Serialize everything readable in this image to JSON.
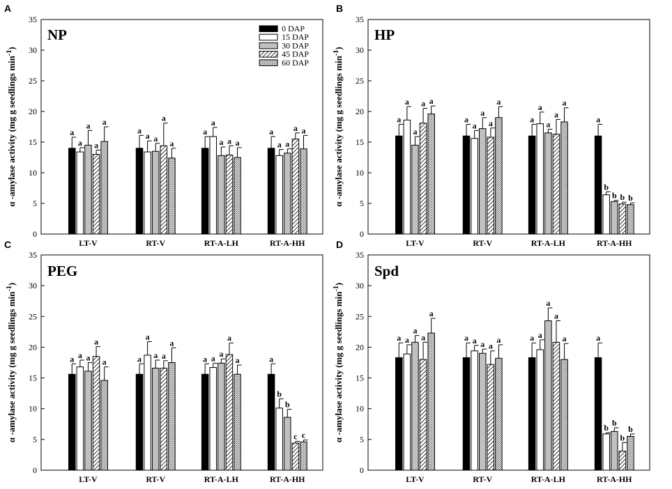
{
  "chart_data": [
    {
      "type": "bar",
      "panel_letter": "A",
      "title": "NP",
      "ylabel": "α -amylase activity (mg g seedlings min",
      "ylabel_sup": "-1",
      "ylabel_close": ")",
      "ylim": [
        0,
        35
      ],
      "yticks": [
        "0",
        "5",
        "10",
        "15",
        "20",
        "25",
        "30",
        "35"
      ],
      "categories": [
        "LT-V",
        "RT-V",
        "RT-A-LH",
        "RT-A-HH"
      ],
      "legend": [
        "0 DAP",
        "15 DAP",
        "30 DAP",
        "45 DAP",
        "60 DAP"
      ],
      "series": [
        {
          "name": "0 DAP",
          "values": [
            14.0,
            14.0,
            14.0,
            14.0
          ],
          "errors": [
            1.8,
            2.1,
            1.9,
            1.9
          ],
          "labels": [
            "a",
            "a",
            "a",
            "a"
          ]
        },
        {
          "name": "15 DAP",
          "values": [
            13.4,
            13.4,
            15.9,
            12.8
          ],
          "errors": [
            0.7,
            1.8,
            1.5,
            1.0
          ],
          "labels": [
            "a",
            "a",
            "a",
            "a"
          ]
        },
        {
          "name": "30 DAP",
          "values": [
            14.5,
            13.5,
            12.8,
            13.2
          ],
          "errors": [
            2.4,
            1.3,
            1.4,
            0.7
          ],
          "labels": [
            "a",
            "a",
            "a",
            "a"
          ]
        },
        {
          "name": "45 DAP",
          "values": [
            13.0,
            14.4,
            12.9,
            15.5
          ],
          "errors": [
            0.7,
            3.7,
            1.5,
            1.0
          ],
          "labels": [
            "a",
            "a",
            "a",
            "a"
          ]
        },
        {
          "name": "60 DAP",
          "values": [
            15.1,
            12.4,
            12.5,
            13.9
          ],
          "errors": [
            2.4,
            1.6,
            1.6,
            2.2
          ],
          "labels": [
            "a",
            "a",
            "a",
            "a"
          ]
        }
      ]
    },
    {
      "type": "bar",
      "panel_letter": "B",
      "title": "HP",
      "ylabel": "α -amylase activity (mg g seedlings min",
      "ylabel_sup": "-1",
      "ylabel_close": ")",
      "ylim": [
        0,
        35
      ],
      "yticks": [
        "0",
        "5",
        "10",
        "15",
        "20",
        "25",
        "30",
        "35"
      ],
      "categories": [
        "LT-V",
        "RT-V",
        "RT-A-LH",
        "RT-A-HH"
      ],
      "series": [
        {
          "name": "0 DAP",
          "values": [
            16.0,
            16.0,
            16.0,
            16.0
          ],
          "errors": [
            1.9,
            1.9,
            1.9,
            1.9
          ],
          "labels": [
            "a",
            "a",
            "a",
            "a"
          ]
        },
        {
          "name": "15 DAP",
          "values": [
            18.6,
            15.6,
            18.0,
            6.4
          ],
          "errors": [
            2.2,
            1.3,
            1.9,
            0.5
          ],
          "labels": [
            "a",
            "a",
            "a",
            "b"
          ]
        },
        {
          "name": "30 DAP",
          "values": [
            14.5,
            17.2,
            16.5,
            5.3
          ],
          "errors": [
            1.4,
            1.8,
            0.6,
            0.2
          ],
          "labels": [
            "a",
            "a",
            "a",
            "b"
          ]
        },
        {
          "name": "45 DAP",
          "values": [
            18.1,
            15.8,
            16.3,
            4.9
          ],
          "errors": [
            2.4,
            1.5,
            2.4,
            0.3
          ],
          "labels": [
            "a",
            "a",
            "a",
            "b"
          ]
        },
        {
          "name": "60 DAP",
          "values": [
            19.6,
            19.0,
            18.3,
            4.8
          ],
          "errors": [
            1.3,
            1.8,
            2.3,
            0.3
          ],
          "labels": [
            "a",
            "a",
            "a",
            "b"
          ]
        }
      ]
    },
    {
      "type": "bar",
      "panel_letter": "C",
      "title": "PEG",
      "ylabel": "α -amylase activity (mg g seedlings min",
      "ylabel_sup": "-1",
      "ylabel_close": ")",
      "ylim": [
        0,
        35
      ],
      "yticks": [
        "0",
        "5",
        "10",
        "15",
        "20",
        "25",
        "30",
        "35"
      ],
      "categories": [
        "LT-V",
        "RT-V",
        "RT-A-LH",
        "RT-A-HH"
      ],
      "series": [
        {
          "name": "0 DAP",
          "values": [
            15.6,
            15.6,
            15.6,
            15.6
          ],
          "errors": [
            1.7,
            1.7,
            1.7,
            1.7
          ],
          "labels": [
            "a",
            "a",
            "a",
            "a"
          ]
        },
        {
          "name": "15 DAP",
          "values": [
            16.8,
            18.7,
            16.7,
            10.1
          ],
          "errors": [
            1.1,
            2.2,
            0.7,
            1.5
          ],
          "labels": [
            "a",
            "a",
            "a",
            "b"
          ]
        },
        {
          "name": "30 DAP",
          "values": [
            16.1,
            16.6,
            17.4,
            8.6
          ],
          "errors": [
            1.4,
            1.3,
            0.7,
            1.3
          ],
          "labels": [
            "a",
            "a",
            "a",
            "b"
          ]
        },
        {
          "name": "45 DAP",
          "values": [
            18.5,
            16.6,
            18.8,
            4.4
          ],
          "errors": [
            1.6,
            1.2,
            1.9,
            0.3
          ],
          "labels": [
            "a",
            "a",
            "a",
            "c"
          ]
        },
        {
          "name": "60 DAP",
          "values": [
            14.6,
            17.5,
            15.6,
            4.6
          ],
          "errors": [
            2.2,
            2.4,
            1.5,
            0.3
          ],
          "labels": [
            "a",
            "a",
            "a",
            "c"
          ]
        }
      ]
    },
    {
      "type": "bar",
      "panel_letter": "D",
      "title": "Spd",
      "ylabel": "α -amylase activity (mg g seedlings min",
      "ylabel_sup": "-1",
      "ylabel_close": ")",
      "ylim": [
        0,
        35
      ],
      "yticks": [
        "0",
        "5",
        "10",
        "15",
        "20",
        "25",
        "30",
        "35"
      ],
      "categories": [
        "LT-V",
        "RT-V",
        "RT-A-LH",
        "RT-A-HH"
      ],
      "series": [
        {
          "name": "0 DAP",
          "values": [
            18.3,
            18.3,
            18.3,
            18.3
          ],
          "errors": [
            2.4,
            2.4,
            2.4,
            2.4
          ],
          "labels": [
            "a",
            "a",
            "a",
            "a"
          ]
        },
        {
          "name": "15 DAP",
          "values": [
            18.9,
            19.4,
            19.6,
            5.9
          ],
          "errors": [
            1.5,
            0.9,
            1.6,
            0.2
          ],
          "labels": [
            "a",
            "a",
            "a",
            "b"
          ]
        },
        {
          "name": "30 DAP",
          "values": [
            20.8,
            19.0,
            24.3,
            6.3
          ],
          "errors": [
            1.1,
            0.7,
            2.1,
            0.6
          ],
          "labels": [
            "a",
            "a",
            "a",
            "b"
          ]
        },
        {
          "name": "45 DAP",
          "values": [
            18.0,
            17.2,
            20.8,
            3.1
          ],
          "errors": [
            2.8,
            2.2,
            3.5,
            1.4
          ],
          "labels": [
            "a",
            "a",
            "a",
            "b"
          ]
        },
        {
          "name": "60 DAP",
          "values": [
            22.3,
            18.2,
            18.0,
            5.5
          ],
          "errors": [
            2.4,
            2.2,
            2.6,
            0.4
          ],
          "labels": [
            "a",
            "a",
            "a",
            "b"
          ]
        }
      ]
    }
  ]
}
